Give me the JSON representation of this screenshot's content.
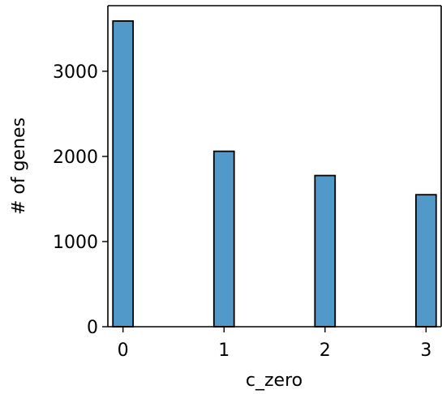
{
  "chart_data": {
    "type": "bar",
    "title": "",
    "xlabel": "c_zero",
    "ylabel": "# of genes",
    "x": [
      0,
      1,
      2,
      3
    ],
    "values": [
      3590,
      2060,
      1775,
      1550
    ],
    "xlim": [
      -0.15,
      3.15
    ],
    "ylim": [
      0,
      3770
    ],
    "xticks": [
      "0",
      "1",
      "2",
      "3"
    ],
    "yticks": [
      0,
      1000,
      2000,
      3000
    ],
    "ytick_labels": [
      "0",
      "1000",
      "2000",
      "3000"
    ],
    "bar_width": 0.2,
    "grid": false,
    "bar_color": "#5199c8"
  }
}
